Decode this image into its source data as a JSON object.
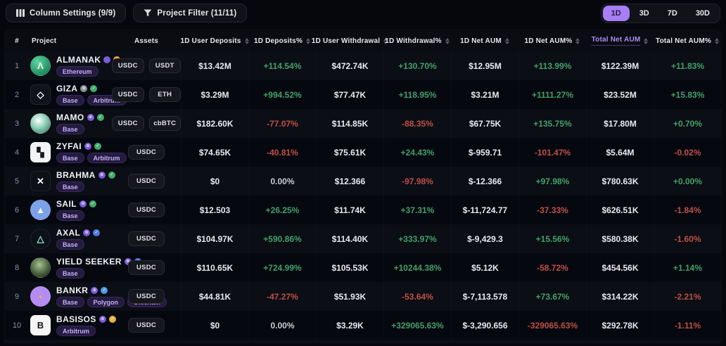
{
  "toolbar": {
    "column_settings_label": "Column Settings (9/9)",
    "project_filter_label": "Project Filter (11/11)",
    "timeframes": [
      {
        "label": "1D",
        "active": true
      },
      {
        "label": "3D",
        "active": false
      },
      {
        "label": "7D",
        "active": false
      },
      {
        "label": "30D",
        "active": false
      }
    ]
  },
  "colors": {
    "accent_purple": "#a77ef5",
    "positive_green": "#43a168",
    "negative_red": "#bf5045",
    "chip_purple_text": "#c3aef5"
  },
  "table": {
    "columns": [
      {
        "label": "#",
        "sortable": false,
        "active": false
      },
      {
        "label": "Project",
        "sortable": false,
        "active": false
      },
      {
        "label": "Assets",
        "sortable": false,
        "active": false
      },
      {
        "label": "1D User Deposits",
        "sortable": true,
        "active": false
      },
      {
        "label": "1D Deposits%",
        "sortable": true,
        "active": false
      },
      {
        "label": "1D User Withdrawal",
        "sortable": true,
        "active": false
      },
      {
        "label": "1D Withdrawal%",
        "sortable": true,
        "active": false
      },
      {
        "label": "1D Net AUM",
        "sortable": true,
        "active": false
      },
      {
        "label": "1D Net AUM%",
        "sortable": true,
        "active": false
      },
      {
        "label": "Total Net AUM",
        "sortable": true,
        "active": true
      },
      {
        "label": "Total Net AUM%",
        "sortable": true,
        "active": false
      }
    ],
    "sorted_column": "Total Net AUM",
    "rows": [
      {
        "rank": 1,
        "name": "ALMANAK",
        "chains": [
          "Ethereum"
        ],
        "assets": [
          "USDC",
          "USDT"
        ],
        "logo": {
          "shape": "circle",
          "bg": "radial-gradient(circle at 35% 30%, #5fd6a0, #1e8a5c 75%)",
          "glyph": "Λ",
          "glyph_color": "#ffffff"
        },
        "badges": [
          {
            "icon": "token",
            "color": "#7a5cd8"
          },
          {
            "icon": "coin",
            "color": "#f0a43c"
          }
        ],
        "deposits": "$13.42M",
        "deposits_pct": "+114.54%",
        "withdrawals": "$472.74K",
        "withdrawals_pct": "+130.70%",
        "net_aum": "$12.95M",
        "net_aum_pct": "+113.99%",
        "total_net_aum": "$122.39M",
        "total_net_aum_pct": "+11.83%"
      },
      {
        "rank": 2,
        "name": "GIZA",
        "chains": [
          "Base",
          "Arbitrum"
        ],
        "assets": [
          "USDC",
          "ETH"
        ],
        "logo": {
          "shape": "square",
          "bg": "#10131a",
          "glyph": "◇",
          "glyph_color": "#ffffff"
        },
        "badges": [
          {
            "icon": "globe",
            "color": "#8a8f98"
          },
          {
            "icon": "shield",
            "color": "#3fae6d"
          }
        ],
        "deposits": "$3.29M",
        "deposits_pct": "+994.52%",
        "withdrawals": "$77.47K",
        "withdrawals_pct": "+118.95%",
        "net_aum": "$3.21M",
        "net_aum_pct": "+1111.27%",
        "total_net_aum": "$23.52M",
        "total_net_aum_pct": "+15.83%"
      },
      {
        "rank": 3,
        "name": "MAMO",
        "chains": [
          "Base"
        ],
        "assets": [
          "USDC",
          "cbBTC"
        ],
        "logo": {
          "shape": "circle",
          "bg": "radial-gradient(circle at 40% 35%, #ffffff, #8fd0b8 45%, #2e6b58)",
          "glyph": "",
          "glyph_color": "#ffffff"
        },
        "badges": [
          {
            "icon": "globe",
            "color": "#7a5cd8"
          },
          {
            "icon": "check",
            "color": "#3fae6d"
          }
        ],
        "deposits": "$182.60K",
        "deposits_pct": "-77.07%",
        "withdrawals": "$114.85K",
        "withdrawals_pct": "-88.35%",
        "net_aum": "$67.75K",
        "net_aum_pct": "+135.75%",
        "total_net_aum": "$17.80M",
        "total_net_aum_pct": "+0.70%"
      },
      {
        "rank": 4,
        "name": "ZYFAI",
        "chains": [
          "Base",
          "Arbitrum"
        ],
        "assets": [
          "USDC"
        ],
        "logo": {
          "shape": "square",
          "bg": "#f2f3f5",
          "glyph": "▚",
          "glyph_color": "#15171c"
        },
        "badges": [
          {
            "icon": "globe",
            "color": "#7a5cd8"
          },
          {
            "icon": "shield",
            "color": "#3fae6d"
          }
        ],
        "deposits": "$74.65K",
        "deposits_pct": "-40.81%",
        "withdrawals": "$75.61K",
        "withdrawals_pct": "+24.43%",
        "net_aum": "$-959.71",
        "net_aum_pct": "-101.47%",
        "total_net_aum": "$5.64M",
        "total_net_aum_pct": "-0.02%"
      },
      {
        "rank": 5,
        "name": "BRAHMA",
        "chains": [
          "Base"
        ],
        "assets": [
          "USDC"
        ],
        "logo": {
          "shape": "square",
          "bg": "#0d1016",
          "glyph": "✕",
          "glyph_color": "#ffffff"
        },
        "badges": [
          {
            "icon": "globe",
            "color": "#7a5cd8"
          },
          {
            "icon": "shield",
            "color": "#3fae6d"
          }
        ],
        "deposits": "$0",
        "deposits_pct": "0.00%",
        "withdrawals": "$12.366",
        "withdrawals_pct": "-97.98%",
        "net_aum": "$-12.366",
        "net_aum_pct": "+97.98%",
        "total_net_aum": "$780.63K",
        "total_net_aum_pct": "+0.00%"
      },
      {
        "rank": 6,
        "name": "SAIL",
        "chains": [
          "Base"
        ],
        "assets": [
          "USDC"
        ],
        "logo": {
          "shape": "circle",
          "bg": "#7ba2e8",
          "glyph": "▲",
          "glyph_color": "#ffffff"
        },
        "badges": [
          {
            "icon": "globe",
            "color": "#7a5cd8"
          },
          {
            "icon": "shield",
            "color": "#3fae6d"
          }
        ],
        "deposits": "$12.503",
        "deposits_pct": "+26.25%",
        "withdrawals": "$11.74K",
        "withdrawals_pct": "+37.31%",
        "net_aum": "$-11,724.77",
        "net_aum_pct": "-37.33%",
        "total_net_aum": "$626.51K",
        "total_net_aum_pct": "-1.84%"
      },
      {
        "rank": 7,
        "name": "AXAL",
        "chains": [
          "Base"
        ],
        "assets": [
          "USDC"
        ],
        "logo": {
          "shape": "circle",
          "bg": "#0c1117",
          "glyph": "△",
          "glyph_color": "#8fe0cf"
        },
        "badges": [
          {
            "icon": "globe",
            "color": "#7a5cd8"
          },
          {
            "icon": "shield",
            "color": "#4a7de0"
          }
        ],
        "deposits": "$104.97K",
        "deposits_pct": "+590.86%",
        "withdrawals": "$114.40K",
        "withdrawals_pct": "+333.97%",
        "net_aum": "$-9,429.3",
        "net_aum_pct": "+15.56%",
        "total_net_aum": "$580.38K",
        "total_net_aum_pct": "-1.60%"
      },
      {
        "rank": 8,
        "name": "YIELD SEEKER",
        "chains": [
          "Base"
        ],
        "assets": [
          "USDC"
        ],
        "logo": {
          "shape": "circle",
          "bg": "radial-gradient(circle at 45% 35%, #a8c290, #3c5232 65%, #1c2418)",
          "glyph": "",
          "glyph_color": "#ffffff"
        },
        "badges": [
          {
            "icon": "globe",
            "color": "#7a5cd8"
          },
          {
            "icon": "shield",
            "color": "#4a7de0"
          }
        ],
        "deposits": "$110.65K",
        "deposits_pct": "+724.99%",
        "withdrawals": "$105.53K",
        "withdrawals_pct": "+10244.38%",
        "net_aum": "$5.12K",
        "net_aum_pct": "-58.72%",
        "total_net_aum": "$454.56K",
        "total_net_aum_pct": "+1.14%"
      },
      {
        "rank": 9,
        "name": "BANKR",
        "chains": [
          "Base",
          "Polygon",
          "Unichain"
        ],
        "assets": [
          "USDC"
        ],
        "logo": {
          "shape": "circle",
          "bg": "#b48cf2",
          "glyph": "▪",
          "glyph_color": "#f5a93f"
        },
        "badges": [
          {
            "icon": "globe",
            "color": "#7a5cd8"
          },
          {
            "icon": "check",
            "color": "#4a9de8"
          }
        ],
        "deposits": "$44.81K",
        "deposits_pct": "-47.27%",
        "withdrawals": "$51.93K",
        "withdrawals_pct": "-53.64%",
        "net_aum": "$-7,113.578",
        "net_aum_pct": "+73.67%",
        "total_net_aum": "$314.22K",
        "total_net_aum_pct": "-2.21%"
      },
      {
        "rank": 10,
        "name": "BASISOS",
        "chains": [
          "Arbitrum"
        ],
        "assets": [
          "USDC"
        ],
        "logo": {
          "shape": "square",
          "bg": "#f5f5f5",
          "glyph": "B",
          "glyph_color": "#101114"
        },
        "badges": [
          {
            "icon": "globe",
            "color": "#7a5cd8"
          },
          {
            "icon": "shield",
            "color": "#e8b33c"
          }
        ],
        "deposits": "$0",
        "deposits_pct": "0.00%",
        "withdrawals": "$3.29K",
        "withdrawals_pct": "+329065.63%",
        "net_aum": "$-3,290.656",
        "net_aum_pct": "-329065.63%",
        "total_net_aum": "$292.78K",
        "total_net_aum_pct": "-1.11%"
      }
    ]
  }
}
